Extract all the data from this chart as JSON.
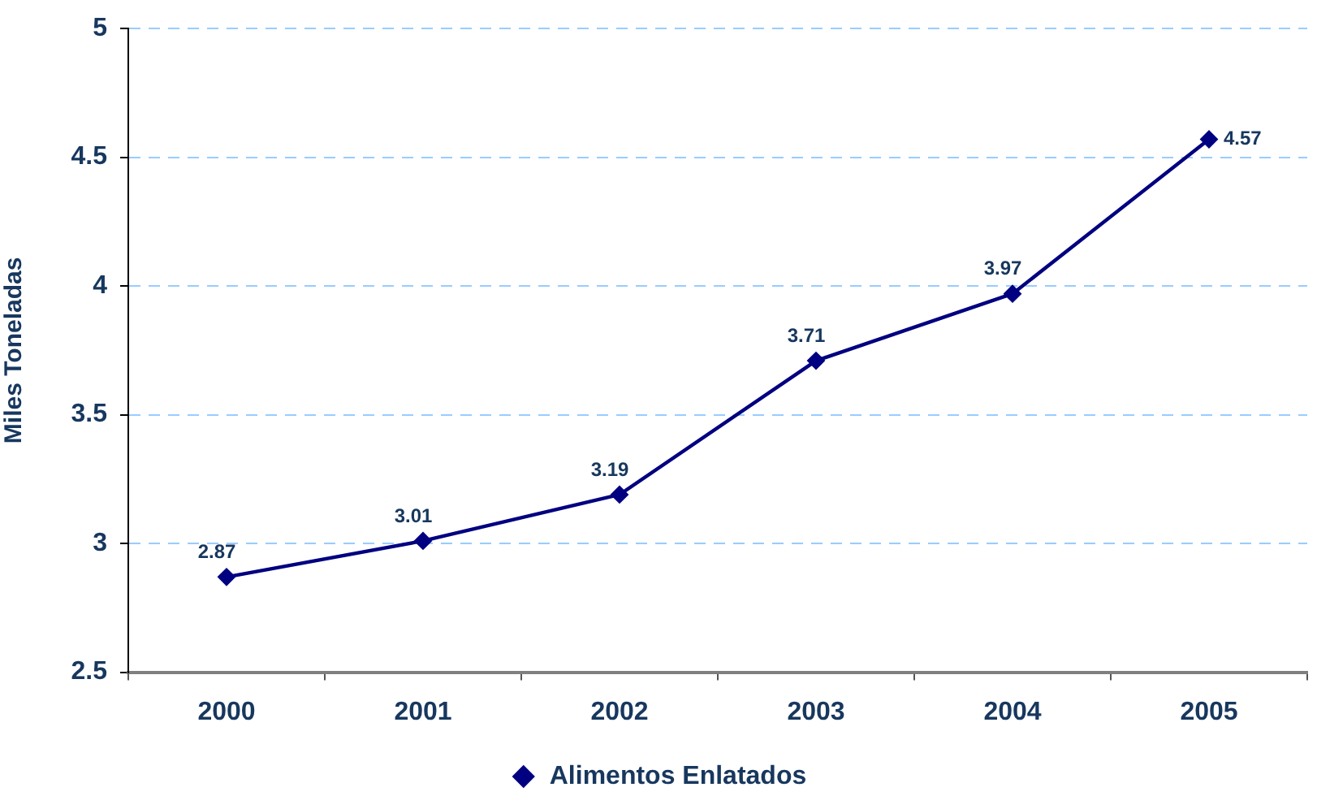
{
  "chart_data": {
    "type": "line",
    "categories": [
      "2000",
      "2001",
      "2002",
      "2003",
      "2004",
      "2005"
    ],
    "series": [
      {
        "name": "Alimentos Enlatados",
        "color": "#000080",
        "values": [
          2.87,
          3.01,
          3.19,
          3.71,
          3.97,
          4.57
        ]
      }
    ],
    "ylabel": "Miles Toneladas",
    "ylim": [
      2.5,
      5
    ],
    "yticks": [
      2.5,
      3,
      3.5,
      4,
      4.5,
      5
    ],
    "grid": "y",
    "legend": "bottom",
    "marker": "diamond",
    "line_style": "solid",
    "data_labels": true
  }
}
